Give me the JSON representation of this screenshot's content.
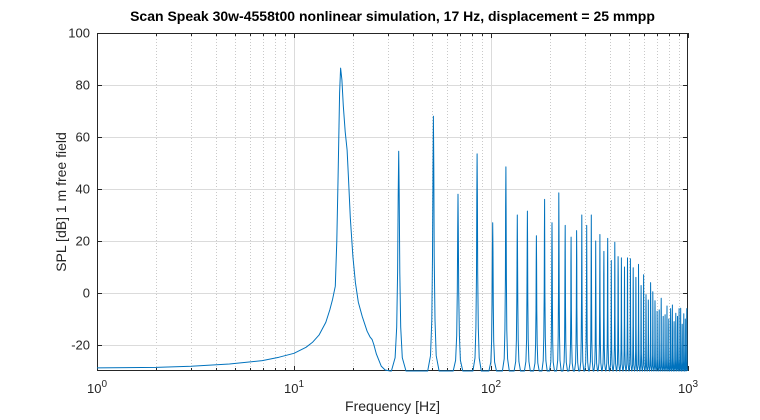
{
  "chart_data": {
    "type": "line",
    "title": "Scan Speak 30w-4558t00 nonlinear simulation, 17 Hz, displacement = 25 mmpp",
    "xlabel": "Frequency [Hz]",
    "ylabel": "SPL [dB] 1 m free field",
    "xscale": "log",
    "xlim": [
      1,
      1000
    ],
    "ylim": [
      -30,
      100
    ],
    "yticks": [
      -20,
      0,
      20,
      40,
      60,
      80,
      100
    ],
    "xticks": [
      {
        "value": 1,
        "label_base": "10",
        "label_exp": "0"
      },
      {
        "value": 10,
        "label_base": "10",
        "label_exp": "1"
      },
      {
        "value": 100,
        "label_base": "10",
        "label_exp": "2"
      },
      {
        "value": 1000,
        "label_base": "10",
        "label_exp": "3"
      }
    ],
    "grid": {
      "y_major": true,
      "x_major": true,
      "x_minor_dotted": true,
      "legend": "none"
    },
    "colors": {
      "line": "#0072BD",
      "axis": "#262626",
      "tick_label": "#262626",
      "major_grid": "#dbdbdb",
      "minor_grid": "#c9c9c9",
      "title": "#000000",
      "background": "#ffffff"
    },
    "fundamental_hz_spl": [
      [
        1,
        -28.8
      ],
      [
        2,
        -28.6
      ],
      [
        3,
        -28.2
      ],
      [
        4.7,
        -27.3
      ],
      [
        6,
        -26.5
      ],
      [
        6.9,
        -26
      ],
      [
        8.4,
        -24.7
      ],
      [
        10,
        -23.2
      ],
      [
        11.5,
        -20.9
      ],
      [
        12.4,
        -19
      ],
      [
        13.4,
        -16.2
      ],
      [
        14.5,
        -11.3
      ],
      [
        15.2,
        -6.5
      ],
      [
        15.7,
        -2.4
      ],
      [
        16.2,
        2.6
      ],
      [
        16.5,
        20
      ],
      [
        16.75,
        45
      ],
      [
        16.9,
        62
      ],
      [
        17.05,
        77
      ],
      [
        17.25,
        86.5
      ],
      [
        17.5,
        82
      ],
      [
        17.8,
        72
      ],
      [
        18.2,
        62
      ],
      [
        18.6,
        55
      ],
      [
        18.9,
        44
      ],
      [
        19.3,
        29
      ],
      [
        19.9,
        14
      ],
      [
        20.5,
        4
      ],
      [
        21.2,
        -3.5
      ],
      [
        22.2,
        -9
      ],
      [
        23.5,
        -14.7
      ],
      [
        24.3,
        -16.9
      ],
      [
        24.9,
        -17.9
      ],
      [
        25.4,
        -19.8
      ],
      [
        26.2,
        -23.5
      ],
      [
        27.7,
        -28.1
      ],
      [
        29,
        -29.6
      ],
      [
        30.8,
        -30
      ]
    ],
    "harmonics_hz_spl": [
      [
        34,
        54.5
      ],
      [
        51,
        68
      ],
      [
        68,
        38
      ],
      [
        85,
        53.5
      ],
      [
        102,
        27
      ],
      [
        119,
        48.5
      ],
      [
        136,
        30
      ],
      [
        153,
        31.5
      ],
      [
        170,
        22
      ],
      [
        187,
        36
      ],
      [
        204,
        27
      ],
      [
        221,
        38.5
      ],
      [
        238,
        26
      ],
      [
        255,
        21.5
      ],
      [
        272,
        24
      ],
      [
        289,
        30
      ],
      [
        306,
        26
      ],
      [
        323,
        30
      ],
      [
        340,
        20
      ],
      [
        357,
        22.5
      ],
      [
        374,
        16
      ],
      [
        391,
        21
      ],
      [
        408,
        12.5
      ],
      [
        425,
        19.5
      ],
      [
        442,
        14
      ],
      [
        459,
        13.5
      ],
      [
        476,
        10
      ],
      [
        493,
        13.5
      ],
      [
        510,
        13.2
      ],
      [
        527,
        9.7
      ],
      [
        544,
        6
      ],
      [
        561,
        11
      ],
      [
        578,
        2.9
      ],
      [
        595,
        7
      ],
      [
        612,
        -0.6
      ],
      [
        629,
        -2.7
      ],
      [
        646,
        4
      ],
      [
        663,
        0.5
      ],
      [
        680,
        -3
      ],
      [
        697,
        -7
      ],
      [
        714,
        -6.5
      ],
      [
        731,
        -2
      ],
      [
        748,
        -9
      ],
      [
        765,
        -8.4
      ],
      [
        782,
        -5
      ],
      [
        799,
        -10
      ],
      [
        816,
        -6
      ],
      [
        833,
        -4.6
      ],
      [
        850,
        -11
      ],
      [
        867,
        -7.8
      ],
      [
        884,
        -9
      ],
      [
        901,
        -6
      ],
      [
        918,
        -5.9
      ],
      [
        935,
        -12
      ],
      [
        952,
        -8
      ],
      [
        969,
        -10
      ],
      [
        986,
        -6
      ]
    ],
    "spike_profile": [
      [
        -1,
        0
      ],
      [
        -0.5,
        0.06
      ],
      [
        -0.28,
        0.2
      ],
      [
        -0.15,
        0.45
      ],
      [
        -0.07,
        0.8
      ],
      [
        0,
        1
      ],
      [
        0.07,
        0.8
      ],
      [
        0.15,
        0.45
      ],
      [
        0.28,
        0.2
      ],
      [
        0.5,
        0.06
      ],
      [
        1,
        0
      ]
    ]
  }
}
